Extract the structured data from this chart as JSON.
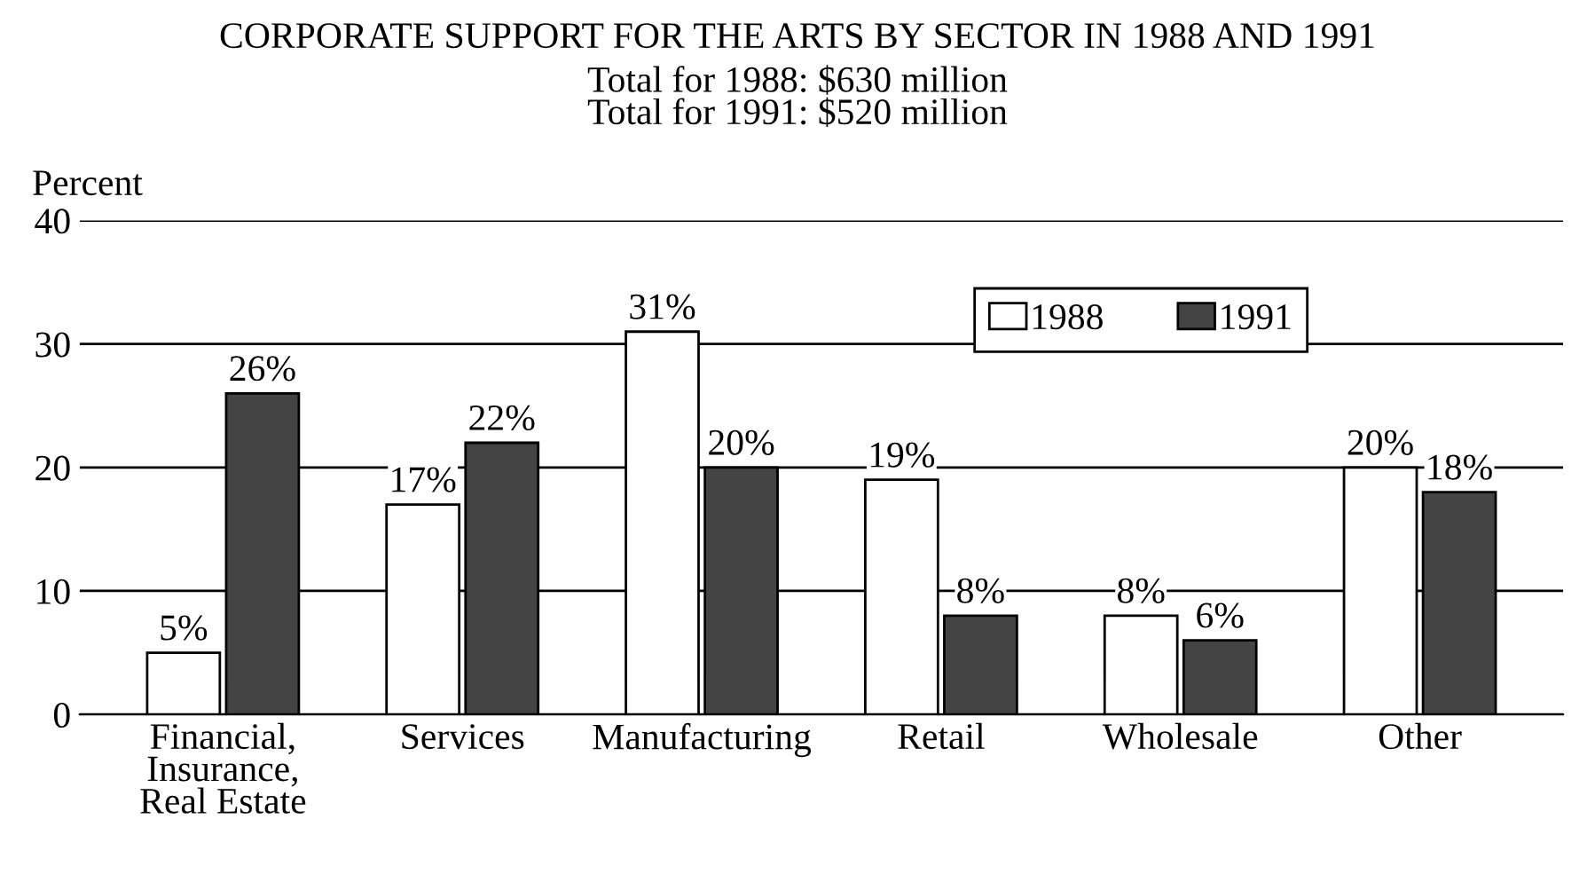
{
  "chart_data": {
    "type": "bar",
    "title": "CORPORATE SUPPORT FOR THE ARTS BY SECTOR IN 1988 AND 1991",
    "subtitle": "Total for 1988: $630 million\nTotal for 1991: $520 million",
    "ylabel": "Percent",
    "categories": [
      "Financial,\nInsurance,\nReal Estate",
      "Services",
      "Manufacturing",
      "Retail",
      "Wholesale",
      "Other"
    ],
    "series": [
      {
        "name": "1988",
        "color": "#ffffff",
        "values": [
          5,
          17,
          31,
          19,
          8,
          20
        ],
        "value_labels": [
          "5%",
          "17%",
          "31%",
          "19%",
          "8%",
          "20%"
        ]
      },
      {
        "name": "1991",
        "color": "#444444",
        "values": [
          26,
          22,
          20,
          8,
          6,
          18
        ],
        "value_labels": [
          "26%",
          "22%",
          "20%",
          "8%",
          "6%",
          "18%"
        ]
      }
    ],
    "ylim": [
      0,
      40
    ],
    "yticks": [
      0,
      10,
      20,
      30,
      40
    ],
    "grid": "y",
    "legend": "top right"
  }
}
